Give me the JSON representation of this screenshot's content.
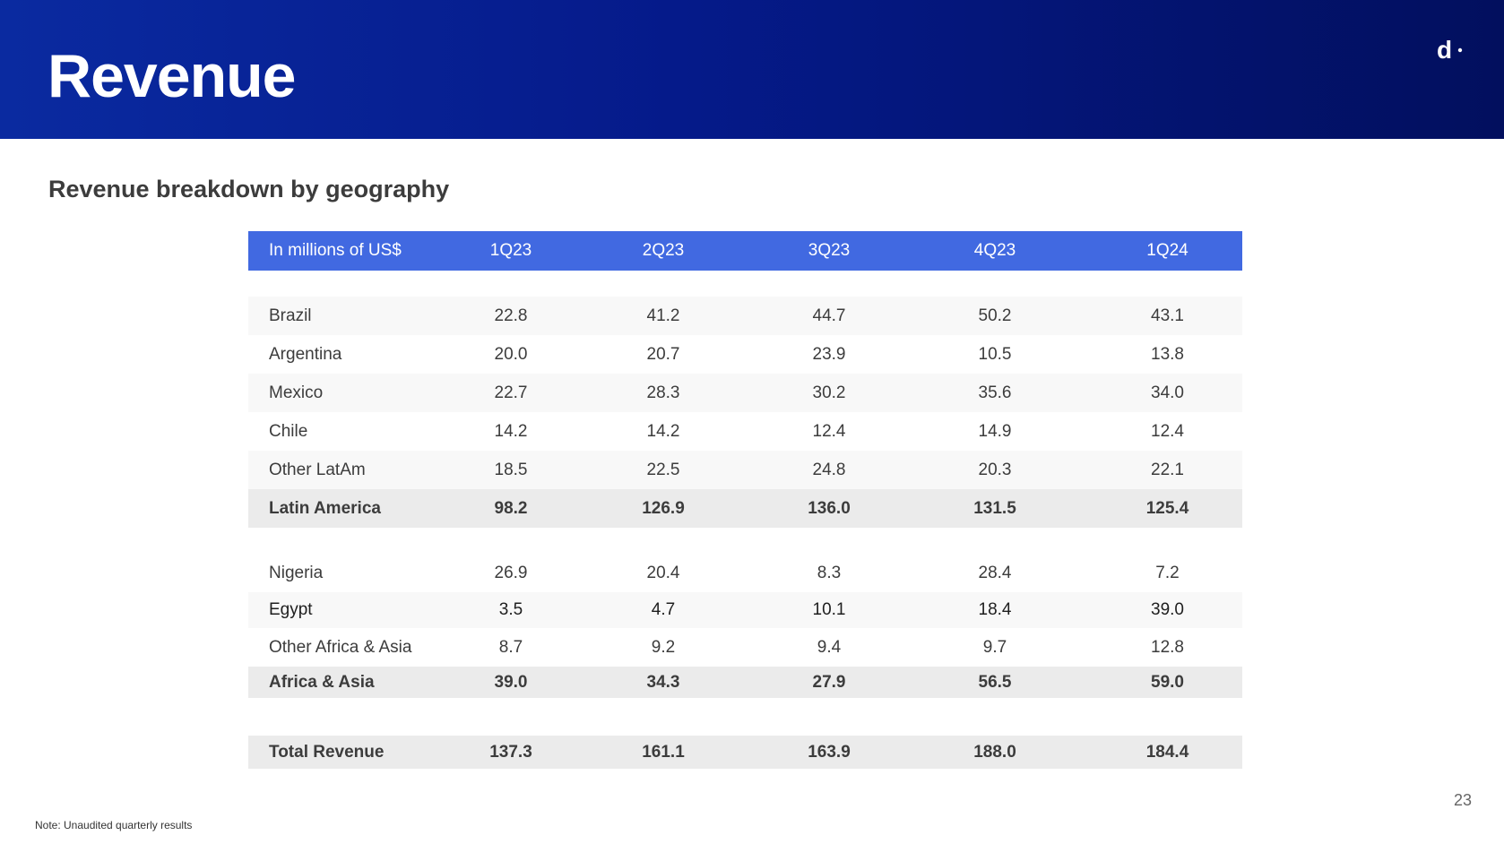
{
  "header": {
    "title": "Revenue",
    "logo_text": "d"
  },
  "subtitle": "Revenue breakdown by geography",
  "table": {
    "columns": [
      "In millions of US$",
      "1Q23",
      "2Q23",
      "3Q23",
      "4Q23",
      "1Q24"
    ],
    "latam_rows": [
      {
        "label": "Brazil",
        "values": [
          "22.8",
          "41.2",
          "44.7",
          "50.2",
          "43.1"
        ]
      },
      {
        "label": "Argentina",
        "values": [
          "20.0",
          "20.7",
          "23.9",
          "10.5",
          "13.8"
        ]
      },
      {
        "label": "Mexico",
        "values": [
          "22.7",
          "28.3",
          "30.2",
          "35.6",
          "34.0"
        ]
      },
      {
        "label": "Chile",
        "values": [
          "14.2",
          "14.2",
          "12.4",
          "14.9",
          "12.4"
        ]
      },
      {
        "label": "Other LatAm",
        "values": [
          "18.5",
          "22.5",
          "24.8",
          "20.3",
          "22.1"
        ]
      }
    ],
    "latam_total": {
      "label": "Latin America",
      "values": [
        "98.2",
        "126.9",
        "136.0",
        "131.5",
        "125.4"
      ]
    },
    "africa_rows": [
      {
        "label": "Nigeria",
        "values": [
          "26.9",
          "20.4",
          "8.3",
          "28.4",
          "7.2"
        ]
      },
      {
        "label": "Egypt",
        "values": [
          "3.5",
          "4.7",
          "10.1",
          "18.4",
          "39.0"
        ]
      },
      {
        "label": "Other Africa & Asia",
        "values": [
          "8.7",
          "9.2",
          "9.4",
          "9.7",
          "12.8"
        ]
      }
    ],
    "africa_total": {
      "label": "Africa & Asia",
      "values": [
        "39.0",
        "34.3",
        "27.9",
        "56.5",
        "59.0"
      ]
    },
    "grand_total": {
      "label": "Total Revenue",
      "values": [
        "137.3",
        "161.1",
        "163.9",
        "188.0",
        "184.4"
      ]
    }
  },
  "page_number": "23",
  "note": "Note: Unaudited quarterly results",
  "colors": {
    "header_start": "#0a2aa0",
    "header_end": "#020f5e",
    "table_header": "#4169e1",
    "subtotal_bg": "#ebebeb",
    "row_shade": "#f8f8f8"
  }
}
